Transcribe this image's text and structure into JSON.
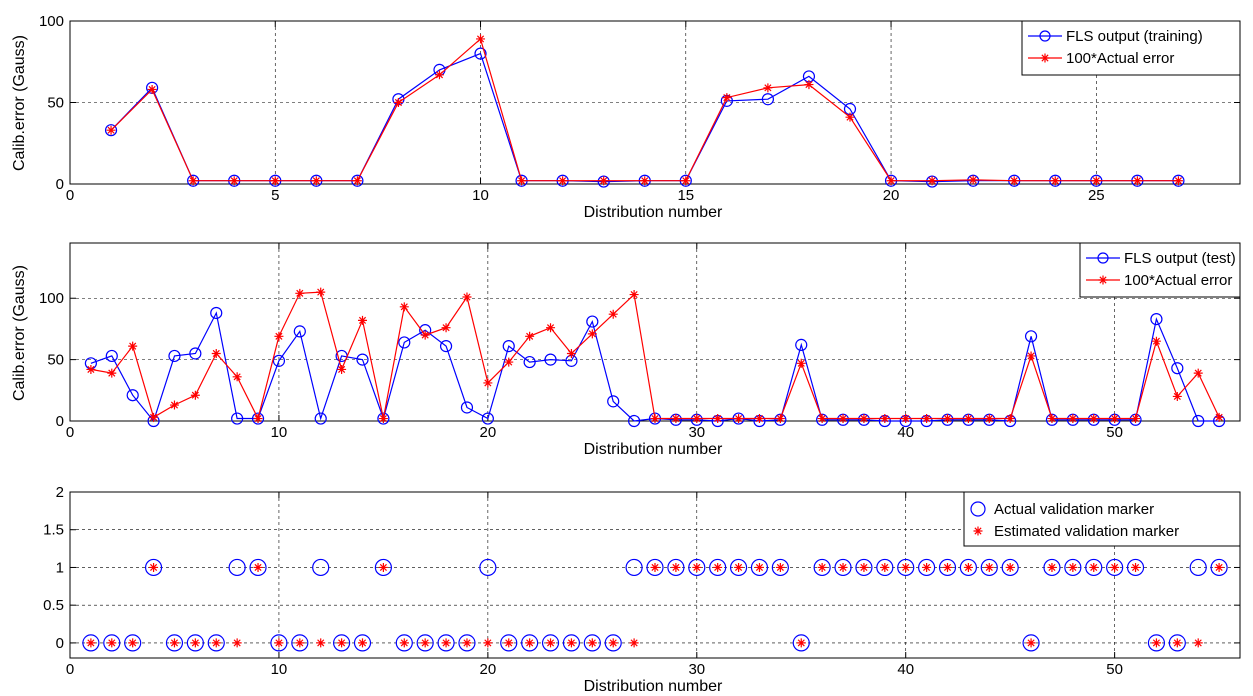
{
  "chart_data": [
    {
      "type": "line",
      "xlabel": "Distribution number",
      "ylabel": "Calib.error (Gauss)",
      "xlim": [
        0,
        28.5
      ],
      "ylim": [
        0,
        100
      ],
      "xticks": [
        0,
        5,
        10,
        15,
        20,
        25
      ],
      "yticks": [
        0,
        50,
        100
      ],
      "grid": true,
      "legend": "top-right",
      "x": [
        1,
        2,
        3,
        4,
        5,
        6,
        7,
        8,
        9,
        10,
        11,
        12,
        13,
        14,
        15,
        16,
        17,
        18,
        19,
        20,
        21,
        22,
        23,
        24,
        25,
        26,
        27
      ],
      "series": [
        {
          "name": "FLS output (training)",
          "color": "#0000ff",
          "marker": "circle",
          "values": [
            33,
            59,
            2,
            2,
            2,
            2,
            2,
            52,
            70,
            80,
            2,
            2,
            1.5,
            2,
            2,
            51,
            52,
            66,
            46,
            2,
            1.5,
            2,
            2,
            2,
            2,
            2,
            2
          ]
        },
        {
          "name": "100*Actual error",
          "color": "#ff0000",
          "marker": "star",
          "values": [
            33,
            58,
            2,
            2,
            2,
            2,
            2,
            50,
            67,
            89,
            2,
            2,
            2,
            2,
            2,
            53,
            59,
            61,
            41,
            2,
            2,
            2.5,
            2,
            2,
            2,
            2,
            2
          ]
        }
      ]
    },
    {
      "type": "line",
      "xlabel": "Distribution number",
      "ylabel": "Calib.error (Gauss)",
      "xlim": [
        0,
        56
      ],
      "ylim": [
        0,
        145
      ],
      "xticks": [
        0,
        10,
        20,
        30,
        40,
        50
      ],
      "yticks": [
        0,
        50,
        100
      ],
      "grid": true,
      "legend": "top-right",
      "x": [
        1,
        2,
        3,
        4,
        5,
        6,
        7,
        8,
        9,
        10,
        11,
        12,
        13,
        14,
        15,
        16,
        17,
        18,
        19,
        20,
        21,
        22,
        23,
        24,
        25,
        26,
        27,
        28,
        29,
        30,
        31,
        32,
        33,
        34,
        35,
        36,
        37,
        38,
        39,
        40,
        41,
        42,
        43,
        44,
        45,
        46,
        47,
        48,
        49,
        50,
        51,
        52,
        53,
        54,
        55
      ],
      "series": [
        {
          "name": "FLS output (test)",
          "color": "#0000ff",
          "marker": "circle",
          "values": [
            47,
            53,
            21,
            0,
            53,
            55,
            88,
            2,
            2,
            49,
            73,
            2,
            53,
            50,
            2,
            64,
            74,
            61,
            11,
            2,
            61,
            48,
            50,
            49,
            81,
            16,
            0,
            2,
            1,
            1,
            0,
            2,
            0,
            1,
            62,
            1,
            1,
            1,
            0,
            0,
            0,
            1,
            1,
            1,
            0,
            69,
            1,
            1,
            1,
            1,
            1,
            83,
            43,
            0,
            0
          ]
        },
        {
          "name": "100*Actual error",
          "color": "#ff0000",
          "marker": "star",
          "values": [
            42,
            39,
            61,
            3,
            13,
            21,
            55,
            36,
            2,
            69,
            104,
            105,
            42,
            82,
            2,
            93,
            70,
            76,
            101,
            31,
            48,
            69,
            76,
            55,
            71,
            87,
            103,
            2,
            2,
            2,
            2,
            2,
            2,
            2,
            47,
            2,
            2,
            2,
            2,
            2,
            2,
            2,
            2,
            2,
            2,
            53,
            2,
            2,
            2,
            2,
            2,
            65,
            20,
            39,
            3
          ]
        }
      ]
    },
    {
      "type": "scatter",
      "xlabel": "Distribution number",
      "xlim": [
        0,
        56
      ],
      "ylim": [
        -0.2,
        2
      ],
      "xticks": [
        0,
        10,
        20,
        30,
        40,
        50
      ],
      "yticks": [
        0,
        0.5,
        1,
        1.5,
        2
      ],
      "grid": true,
      "legend": "top-right",
      "x": [
        1,
        2,
        3,
        4,
        5,
        6,
        7,
        8,
        9,
        10,
        11,
        12,
        13,
        14,
        15,
        16,
        17,
        18,
        19,
        20,
        21,
        22,
        23,
        24,
        25,
        26,
        27,
        28,
        29,
        30,
        31,
        32,
        33,
        34,
        35,
        36,
        37,
        38,
        39,
        40,
        41,
        42,
        43,
        44,
        45,
        46,
        47,
        48,
        49,
        50,
        51,
        52,
        53,
        54,
        55
      ],
      "series": [
        {
          "name": "Actual validation marker",
          "color": "#0000ff",
          "marker": "circle",
          "values": [
            0,
            0,
            0,
            1,
            0,
            0,
            0,
            1,
            1,
            0,
            0,
            1,
            0,
            0,
            1,
            0,
            0,
            0,
            0,
            1,
            0,
            0,
            0,
            0,
            0,
            0,
            1,
            1,
            1,
            1,
            1,
            1,
            1,
            1,
            0,
            1,
            1,
            1,
            1,
            1,
            1,
            1,
            1,
            1,
            1,
            0,
            1,
            1,
            1,
            1,
            1,
            0,
            0,
            1,
            1
          ]
        },
        {
          "name": "Estimated validation marker",
          "color": "#ff0000",
          "marker": "star",
          "values": [
            0,
            0,
            0,
            1,
            0,
            0,
            0,
            0,
            1,
            0,
            0,
            0,
            0,
            0,
            1,
            0,
            0,
            0,
            0,
            0,
            0,
            0,
            0,
            0,
            0,
            0,
            0,
            1,
            1,
            1,
            1,
            1,
            1,
            1,
            0,
            1,
            1,
            1,
            1,
            1,
            1,
            1,
            1,
            1,
            1,
            0,
            1,
            1,
            1,
            1,
            1,
            0,
            0,
            0,
            1
          ]
        }
      ]
    }
  ]
}
